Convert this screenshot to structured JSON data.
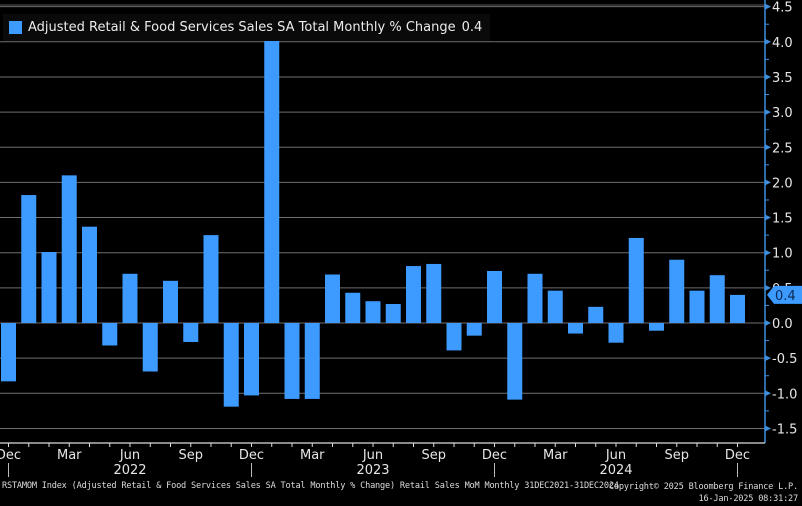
{
  "chart_data": {
    "type": "bar",
    "title": "Adjusted Retail & Food Services Sales SA Total Monthly % Change",
    "legend": [
      {
        "name": "Adjusted Retail & Food Services Sales SA Total Monthly % Change",
        "last_value": "0.4",
        "color": "#3d9bff"
      }
    ],
    "legend_placement": "top-left",
    "xlabel": "",
    "ylabel": "",
    "ylim": [
      -1.7,
      4.6
    ],
    "yticks": [
      -1.5,
      -1.0,
      -0.5,
      0.0,
      0.5,
      1.0,
      1.5,
      2.0,
      2.5,
      3.0,
      3.5,
      4.0,
      4.5
    ],
    "ytick_labels": [
      "-1.5",
      "-1.0",
      "-0.5",
      "0.0",
      "0.5",
      "1.0",
      "1.5",
      "2.0",
      "2.5",
      "3.0",
      "3.5",
      "4.0",
      "4.5"
    ],
    "y_axis_side": "right",
    "grid": true,
    "last_value_marker": "0.4",
    "categories": [
      "Dec 2021",
      "Jan 2022",
      "Feb 2022",
      "Mar 2022",
      "Apr 2022",
      "May 2022",
      "Jun 2022",
      "Jul 2022",
      "Aug 2022",
      "Sep 2022",
      "Oct 2022",
      "Nov 2022",
      "Dec 2022",
      "Jan 2023",
      "Feb 2023",
      "Mar 2023",
      "Apr 2023",
      "May 2023",
      "Jun 2023",
      "Jul 2023",
      "Aug 2023",
      "Sep 2023",
      "Oct 2023",
      "Nov 2023",
      "Dec 2023",
      "Jan 2024",
      "Feb 2024",
      "Mar 2024",
      "Apr 2024",
      "May 2024",
      "Jun 2024",
      "Jul 2024",
      "Aug 2024",
      "Sep 2024",
      "Oct 2024",
      "Nov 2024",
      "Dec 2024"
    ],
    "values": [
      -0.83,
      1.82,
      1.01,
      2.1,
      1.37,
      -0.32,
      0.7,
      -0.69,
      0.6,
      -0.27,
      1.25,
      -1.19,
      -1.03,
      4.08,
      -1.08,
      -1.08,
      0.69,
      0.43,
      0.31,
      0.27,
      0.81,
      0.84,
      -0.39,
      -0.18,
      0.74,
      -1.09,
      0.7,
      0.46,
      -0.15,
      0.23,
      -0.28,
      1.21,
      -0.11,
      0.9,
      0.46,
      0.68,
      0.4
    ],
    "x_month_labels": [
      {
        "index": 0,
        "label": "Dec"
      },
      {
        "index": 3,
        "label": "Mar"
      },
      {
        "index": 6,
        "label": "Jun"
      },
      {
        "index": 9,
        "label": "Sep"
      },
      {
        "index": 12,
        "label": "Dec"
      },
      {
        "index": 15,
        "label": "Mar"
      },
      {
        "index": 18,
        "label": "Jun"
      },
      {
        "index": 21,
        "label": "Sep"
      },
      {
        "index": 24,
        "label": "Dec"
      },
      {
        "index": 27,
        "label": "Mar"
      },
      {
        "index": 30,
        "label": "Jun"
      },
      {
        "index": 33,
        "label": "Sep"
      },
      {
        "index": 36,
        "label": "Dec"
      }
    ],
    "x_year_labels": [
      {
        "index": 6,
        "label": "2022"
      },
      {
        "index": 18,
        "label": "2023"
      },
      {
        "index": 30,
        "label": "2024"
      }
    ],
    "year_separators": [
      0,
      12,
      24,
      36
    ]
  },
  "legend": {
    "label": "Adjusted Retail & Food Services Sales SA Total Monthly % Change",
    "value": "0.4"
  },
  "footer": {
    "description": "RSTAMOM Index (Adjusted Retail & Food Services Sales SA Total Monthly % Change) Retail Sales MoM  Monthly 31DEC2021-31DEC2024",
    "copyright": "Copyright© 2025 Bloomberg Finance L.P.",
    "timestamp": "16-Jan-2025 08:31:27"
  },
  "colors": {
    "bar": "#3d9bff",
    "background": "#000000",
    "grid": "#6e6e6e",
    "axis": "#3d8fe0",
    "text": "#e6e6e6"
  }
}
